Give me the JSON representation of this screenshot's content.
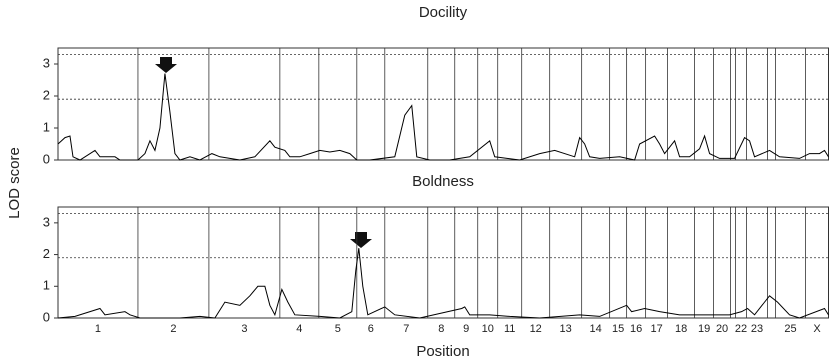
{
  "chart_data": [
    {
      "type": "line",
      "title": "Docility",
      "ylabel": "LOD score",
      "color": "#000000",
      "xlim": [
        0,
        771
      ],
      "ylim": [
        0,
        3.5
      ],
      "yticks": [
        0,
        1,
        2,
        3
      ],
      "thresholds": [
        1.9,
        3.3
      ],
      "boundaries": [
        0,
        80,
        151,
        222,
        261,
        299,
        327,
        370,
        397,
        420,
        440,
        464,
        492,
        524,
        552,
        569,
        588,
        610,
        637,
        656,
        673,
        678,
        689,
        710,
        718,
        748,
        771
      ],
      "x": [
        0,
        7,
        12,
        15,
        22,
        37,
        42,
        57,
        62,
        80,
        87,
        92,
        97,
        102,
        107,
        112,
        117,
        122,
        132,
        142,
        154,
        162,
        182,
        197,
        212,
        217,
        227,
        232,
        242,
        252,
        262,
        272,
        282,
        292,
        299,
        312,
        337,
        347,
        354,
        359,
        372,
        392,
        412,
        432,
        437,
        462,
        482,
        497,
        517,
        522,
        527,
        532,
        542,
        562,
        577,
        582,
        597,
        602,
        607,
        617,
        622,
        632,
        642,
        647,
        652,
        662,
        677,
        687,
        692,
        697,
        712,
        722,
        742,
        752,
        762,
        767,
        771
      ],
      "values": [
        0.5,
        0.7,
        0.75,
        0.1,
        0,
        0.3,
        0.1,
        0.1,
        0,
        0,
        0.2,
        0.6,
        0.3,
        1.0,
        2.7,
        1.5,
        0.2,
        0,
        0.1,
        0,
        0.2,
        0.1,
        0,
        0.1,
        0.6,
        0.4,
        0.3,
        0.1,
        0.1,
        0.2,
        0.3,
        0.25,
        0.3,
        0.2,
        0,
        0,
        0.1,
        1.4,
        1.7,
        0.1,
        0,
        0,
        0.1,
        0.6,
        0.1,
        0,
        0.2,
        0.3,
        0.1,
        0.7,
        0.5,
        0.1,
        0.05,
        0.1,
        0,
        0.5,
        0.75,
        0.5,
        0.2,
        0.6,
        0.1,
        0.1,
        0.35,
        0.75,
        0.2,
        0.05,
        0.05,
        0.7,
        0.6,
        0.1,
        0.3,
        0.1,
        0.05,
        0.2,
        0.2,
        0.3,
        0.1
      ]
    },
    {
      "type": "line",
      "title": "Boldness",
      "xlabel": "Position",
      "color": "#000000",
      "xlim": [
        0,
        771
      ],
      "ylim": [
        0,
        3.5
      ],
      "yticks": [
        0,
        1,
        2,
        3
      ],
      "thresholds": [
        1.9,
        3.3
      ],
      "boundaries": [
        0,
        80,
        151,
        222,
        261,
        299,
        327,
        370,
        397,
        420,
        440,
        464,
        492,
        524,
        552,
        569,
        588,
        610,
        637,
        656,
        673,
        678,
        689,
        710,
        718,
        748,
        771
      ],
      "categories": [
        "1",
        "2",
        "3",
        "4",
        "5",
        "6",
        "7",
        "8",
        "9",
        "10",
        "11",
        "12",
        "13",
        "14",
        "15",
        "16",
        "17",
        "18",
        "19",
        "20",
        null,
        "22",
        "23",
        null,
        "25",
        "X"
      ],
      "x": [
        0,
        17,
        42,
        47,
        67,
        72,
        82,
        122,
        142,
        157,
        167,
        182,
        192,
        200,
        207,
        212,
        217,
        224,
        230,
        237,
        262,
        282,
        294,
        298,
        301,
        305,
        310,
        327,
        337,
        362,
        404,
        407,
        412,
        432,
        452,
        482,
        522,
        542,
        569,
        574,
        587,
        602,
        622,
        642,
        672,
        684,
        690,
        697,
        712,
        720,
        732,
        742,
        767,
        771
      ],
      "values": [
        0,
        0.05,
        0.3,
        0.1,
        0.2,
        0.1,
        0,
        0,
        0.05,
        0,
        0.5,
        0.4,
        0.7,
        1.0,
        1.0,
        0.4,
        0.1,
        0.9,
        0.5,
        0.1,
        0.05,
        0,
        0.2,
        1.5,
        2.2,
        1.0,
        0.1,
        0.35,
        0.1,
        0,
        0.3,
        0.35,
        0.1,
        0.1,
        0.05,
        0,
        0.1,
        0.05,
        0.4,
        0.2,
        0.3,
        0.2,
        0.1,
        0.1,
        0.1,
        0.2,
        0.3,
        0.1,
        0.7,
        0.5,
        0.1,
        0,
        0.3,
        0.1
      ]
    }
  ]
}
